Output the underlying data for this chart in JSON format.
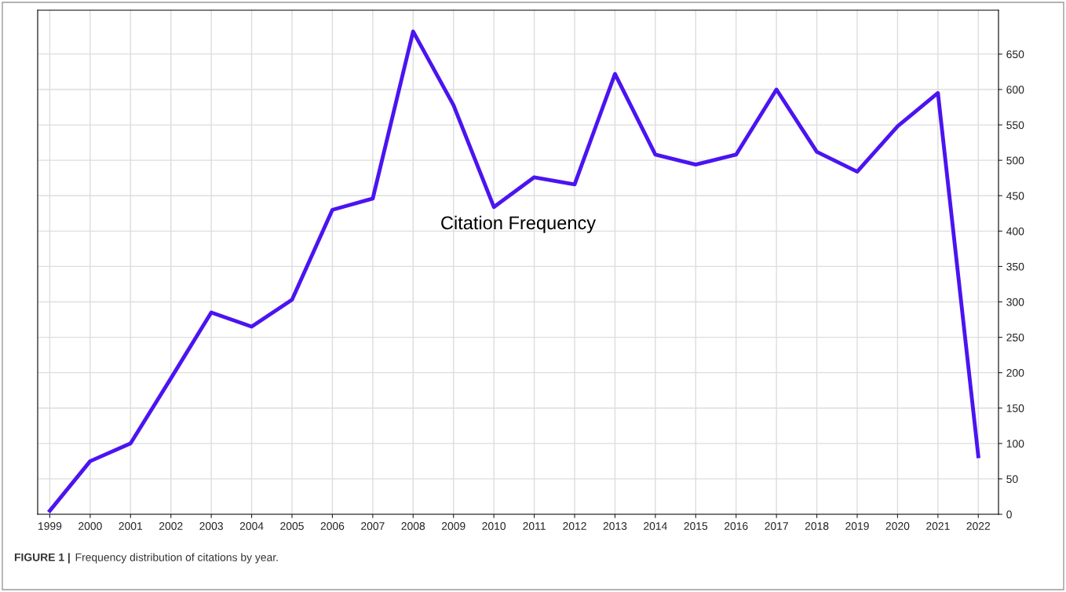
{
  "chart_data": {
    "type": "line",
    "x": [
      1999,
      2000,
      2001,
      2002,
      2003,
      2004,
      2005,
      2006,
      2007,
      2008,
      2009,
      2010,
      2011,
      2012,
      2013,
      2014,
      2015,
      2016,
      2017,
      2018,
      2019,
      2020,
      2021,
      2022
    ],
    "series": [
      {
        "name": "Citation Frequency",
        "color": "#4b14f0",
        "values": [
          5,
          75,
          100,
          192,
          285,
          265,
          303,
          430,
          446,
          682,
          578,
          434,
          476,
          466,
          622,
          508,
          494,
          508,
          600,
          512,
          484,
          548,
          595,
          82
        ]
      }
    ],
    "xlim": [
      1998.7,
      2022.5
    ],
    "xticks": [
      1999,
      2000,
      2001,
      2002,
      2003,
      2004,
      2005,
      2006,
      2007,
      2008,
      2009,
      2010,
      2011,
      2012,
      2013,
      2014,
      2015,
      2016,
      2017,
      2018,
      2019,
      2020,
      2021,
      2022
    ],
    "ylim": [
      0,
      712
    ],
    "yticks": [
      0,
      50,
      100,
      150,
      200,
      250,
      300,
      350,
      400,
      450,
      500,
      550,
      600,
      650
    ],
    "grid": true,
    "marker": "none",
    "line_style": "solid",
    "annotations": [
      "FIGURE 1 | Frequency distribution of citations by year."
    ]
  }
}
